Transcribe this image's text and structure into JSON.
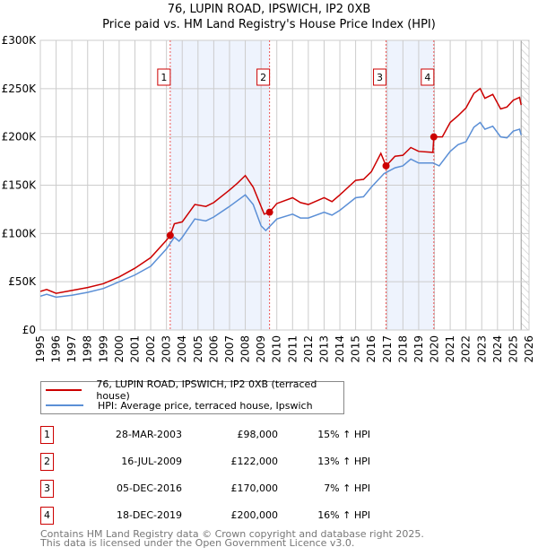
{
  "title": "76, LUPIN ROAD, IPSWICH, IP2 0XB",
  "subtitle": "Price paid vs. HM Land Registry's House Price Index (HPI)",
  "legend": [
    {
      "label": "76, LUPIN ROAD, IPSWICH, IP2 0XB (terraced house)",
      "color": "#cc0000"
    },
    {
      "label": "HPI: Average price, terraced house, Ipswich",
      "color": "#5b8fd6"
    }
  ],
  "sales": [
    {
      "n": "1",
      "date": "28-MAR-2003",
      "price": "£98,000",
      "hpi": "15% ↑ HPI"
    },
    {
      "n": "2",
      "date": "16-JUL-2009",
      "price": "£122,000",
      "hpi": "13% ↑ HPI"
    },
    {
      "n": "3",
      "date": "05-DEC-2016",
      "price": "£170,000",
      "hpi": "7% ↑ HPI"
    },
    {
      "n": "4",
      "date": "18-DEC-2019",
      "price": "£200,000",
      "hpi": "16% ↑ HPI"
    }
  ],
  "footer": [
    "Contains HM Land Registry data © Crown copyright and database right 2025.",
    "This data is licensed under the Open Government Licence v3.0."
  ],
  "chart_data": {
    "type": "line",
    "xlim": [
      1995,
      2026
    ],
    "ylim": [
      0,
      300000
    ],
    "yticks": [
      {
        "v": 0,
        "l": "£0"
      },
      {
        "v": 50000,
        "l": "£50K"
      },
      {
        "v": 100000,
        "l": "£100K"
      },
      {
        "v": 150000,
        "l": "£150K"
      },
      {
        "v": 200000,
        "l": "£200K"
      },
      {
        "v": 250000,
        "l": "£250K"
      },
      {
        "v": 300000,
        "l": "£300K"
      }
    ],
    "xticks": [
      "1995",
      "1996",
      "1997",
      "1998",
      "1999",
      "2000",
      "2001",
      "2002",
      "2003",
      "2004",
      "2005",
      "2006",
      "2007",
      "2008",
      "2009",
      "2010",
      "2011",
      "2012",
      "2013",
      "2014",
      "2015",
      "2016",
      "2017",
      "2018",
      "2019",
      "2020",
      "2021",
      "2022",
      "2023",
      "2024",
      "2025",
      "2026"
    ],
    "forecast_start": 2025.5,
    "shaded": [
      [
        2003.24,
        2009.54
      ],
      [
        2016.93,
        2019.96
      ]
    ],
    "markers": [
      {
        "n": "1",
        "x": 2003.24,
        "y": 98000
      },
      {
        "n": "2",
        "x": 2009.54,
        "y": 122000
      },
      {
        "n": "3",
        "x": 2016.93,
        "y": 170000
      },
      {
        "n": "4",
        "x": 2019.96,
        "y": 200000
      }
    ],
    "series": [
      {
        "name": "76, LUPIN ROAD, IPSWICH, IP2 0XB (terraced house)",
        "color": "#cc0000",
        "points": [
          [
            1995,
            40000
          ],
          [
            1995.4,
            42000
          ],
          [
            1996,
            38000
          ],
          [
            1997,
            41000
          ],
          [
            1998,
            44000
          ],
          [
            1999,
            48000
          ],
          [
            2000,
            55000
          ],
          [
            2001,
            64000
          ],
          [
            2002,
            75000
          ],
          [
            2003,
            93000
          ],
          [
            2003.24,
            98000
          ],
          [
            2003.5,
            110000
          ],
          [
            2004,
            112000
          ],
          [
            2004.8,
            130000
          ],
          [
            2005.5,
            128000
          ],
          [
            2006,
            132000
          ],
          [
            2007,
            145000
          ],
          [
            2007.5,
            152000
          ],
          [
            2008,
            160000
          ],
          [
            2008.5,
            148000
          ],
          [
            2009.2,
            120000
          ],
          [
            2009.54,
            122000
          ],
          [
            2010,
            131000
          ],
          [
            2011,
            137000
          ],
          [
            2011.5,
            132000
          ],
          [
            2012,
            130000
          ],
          [
            2013,
            137000
          ],
          [
            2013.5,
            133000
          ],
          [
            2014,
            140000
          ],
          [
            2015,
            155000
          ],
          [
            2015.5,
            156000
          ],
          [
            2016,
            164000
          ],
          [
            2016.6,
            183000
          ],
          [
            2016.93,
            170000
          ],
          [
            2017.5,
            180000
          ],
          [
            2018,
            181000
          ],
          [
            2018.5,
            189000
          ],
          [
            2019,
            185000
          ],
          [
            2019.9,
            184000
          ],
          [
            2019.96,
            200000
          ],
          [
            2020.5,
            200000
          ],
          [
            2021,
            215000
          ],
          [
            2021.5,
            222000
          ],
          [
            2022,
            230000
          ],
          [
            2022.5,
            245000
          ],
          [
            2022.9,
            250000
          ],
          [
            2023.2,
            240000
          ],
          [
            2023.7,
            244000
          ],
          [
            2024.2,
            229000
          ],
          [
            2024.6,
            231000
          ],
          [
            2025,
            238000
          ],
          [
            2025.4,
            241000
          ],
          [
            2025.5,
            233000
          ]
        ]
      },
      {
        "name": "HPI: Average price, terraced house, Ipswich",
        "color": "#5b8fd6",
        "points": [
          [
            1995,
            35000
          ],
          [
            1995.4,
            37000
          ],
          [
            1996,
            34000
          ],
          [
            1997,
            36000
          ],
          [
            1998,
            39000
          ],
          [
            1999,
            43000
          ],
          [
            2000,
            50000
          ],
          [
            2001,
            57000
          ],
          [
            2002,
            66000
          ],
          [
            2003,
            84000
          ],
          [
            2003.5,
            96000
          ],
          [
            2003.8,
            92000
          ],
          [
            2004,
            96000
          ],
          [
            2004.8,
            115000
          ],
          [
            2005.5,
            113000
          ],
          [
            2006,
            117000
          ],
          [
            2007,
            128000
          ],
          [
            2008,
            140000
          ],
          [
            2008.5,
            130000
          ],
          [
            2009,
            108000
          ],
          [
            2009.3,
            103000
          ],
          [
            2010,
            115000
          ],
          [
            2011,
            120000
          ],
          [
            2011.5,
            116000
          ],
          [
            2012,
            116000
          ],
          [
            2013,
            122000
          ],
          [
            2013.5,
            119000
          ],
          [
            2014,
            124000
          ],
          [
            2015,
            137000
          ],
          [
            2015.5,
            138000
          ],
          [
            2016,
            148000
          ],
          [
            2016.8,
            162000
          ],
          [
            2017.5,
            168000
          ],
          [
            2018,
            170000
          ],
          [
            2018.5,
            177000
          ],
          [
            2019,
            173000
          ],
          [
            2019.9,
            173000
          ],
          [
            2020.3,
            170000
          ],
          [
            2021,
            185000
          ],
          [
            2021.5,
            192000
          ],
          [
            2022,
            195000
          ],
          [
            2022.5,
            210000
          ],
          [
            2022.9,
            215000
          ],
          [
            2023.2,
            208000
          ],
          [
            2023.7,
            211000
          ],
          [
            2024.2,
            200000
          ],
          [
            2024.6,
            199000
          ],
          [
            2025,
            206000
          ],
          [
            2025.4,
            208000
          ],
          [
            2025.5,
            202000
          ]
        ]
      }
    ]
  }
}
